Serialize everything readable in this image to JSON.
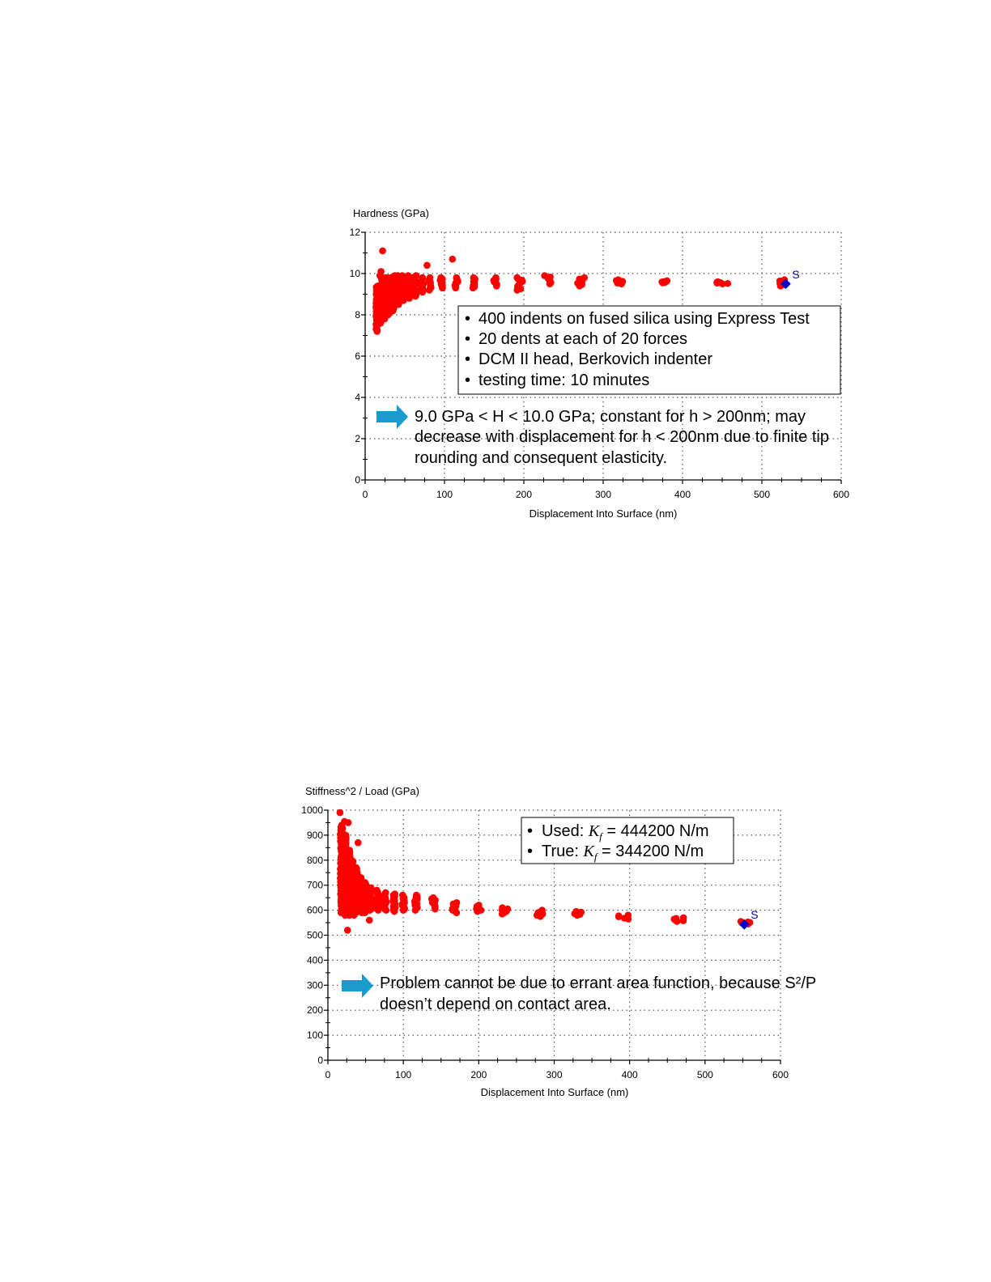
{
  "chart_data": [
    {
      "type": "scatter",
      "ylabel": "Hardness (GPa)",
      "xlabel": "Displacement Into Surface (nm)",
      "xlim": [
        0,
        600
      ],
      "ylim": [
        0,
        12
      ],
      "xticks": [
        0,
        100,
        200,
        300,
        400,
        500,
        600
      ],
      "yticks": [
        0,
        2,
        4,
        6,
        8,
        10,
        12
      ],
      "grid": true,
      "series": [
        {
          "color": "#ff0000",
          "clusters": [
            {
              "x": 15,
              "y_min": 7.2,
              "y_max": 9.4
            },
            {
              "x": 20,
              "y_min": 7.6,
              "y_max": 9.9
            },
            {
              "x": 25,
              "y_min": 7.8,
              "y_max": 9.8
            },
            {
              "x": 30,
              "y_min": 8.0,
              "y_max": 9.8
            },
            {
              "x": 36,
              "y_min": 8.2,
              "y_max": 9.9
            },
            {
              "x": 42,
              "y_min": 8.5,
              "y_max": 9.9
            },
            {
              "x": 48,
              "y_min": 8.7,
              "y_max": 9.9
            },
            {
              "x": 55,
              "y_min": 8.8,
              "y_max": 9.9
            },
            {
              "x": 63,
              "y_min": 8.9,
              "y_max": 9.9
            },
            {
              "x": 72,
              "y_min": 9.1,
              "y_max": 9.8
            },
            {
              "x": 82,
              "y_min": 9.2,
              "y_max": 9.8
            },
            {
              "x": 96,
              "y_min": 9.3,
              "y_max": 9.8
            },
            {
              "x": 115,
              "y_min": 9.3,
              "y_max": 9.8
            },
            {
              "x": 138,
              "y_min": 9.3,
              "y_max": 9.8
            },
            {
              "x": 165,
              "y_min": 9.4,
              "y_max": 9.8
            },
            {
              "x": 195,
              "y_min": 9.2,
              "y_max": 9.8
            },
            {
              "x": 230,
              "y_min": 9.5,
              "y_max": 9.9
            },
            {
              "x": 272,
              "y_min": 9.4,
              "y_max": 9.8
            },
            {
              "x": 322,
              "y_min": 9.5,
              "y_max": 9.7
            },
            {
              "x": 380,
              "y_min": 9.55,
              "y_max": 9.65
            },
            {
              "x": 450,
              "y_min": 9.5,
              "y_max": 9.6
            },
            {
              "x": 530,
              "y_min": 9.4,
              "y_max": 9.7
            }
          ],
          "outliers": [
            [
              22,
              11.1
            ],
            [
              20,
              10.1
            ],
            [
              78,
              10.4
            ],
            [
              110,
              10.7
            ]
          ]
        },
        {
          "color": "#0000cc",
          "points": [
            [
              530,
              9.5
            ]
          ],
          "label": "S"
        }
      ],
      "callout": {
        "bullets": [
          "400 indents on fused silica using Express Test",
          "20 dents at each of 20 forces",
          "DCM II head, Berkovich indenter",
          "testing time: 10 minutes"
        ]
      },
      "note": {
        "lines": [
          "9.0 GPa < H < 10.0 GPa; constant for h > 200nm; may",
          "decrease with displacement for h < 200nm due to finite tip",
          "rounding and consequent elasticity."
        ]
      }
    },
    {
      "type": "scatter",
      "ylabel": "Stiffness^2 / Load (GPa)",
      "xlabel": "Displacement Into Surface (nm)",
      "xlim": [
        0,
        600
      ],
      "ylim": [
        0,
        1000
      ],
      "xticks": [
        0,
        100,
        200,
        300,
        400,
        500,
        600
      ],
      "yticks": [
        0,
        100,
        200,
        300,
        400,
        500,
        600,
        700,
        800,
        900,
        1000
      ],
      "grid": true,
      "series": [
        {
          "color": "#ff0000",
          "clusters": [
            {
              "x": 18,
              "y_min": 590,
              "y_max": 940
            },
            {
              "x": 23,
              "y_min": 580,
              "y_max": 900
            },
            {
              "x": 28,
              "y_min": 580,
              "y_max": 840
            },
            {
              "x": 33,
              "y_min": 580,
              "y_max": 800
            },
            {
              "x": 38,
              "y_min": 590,
              "y_max": 770
            },
            {
              "x": 44,
              "y_min": 590,
              "y_max": 730
            },
            {
              "x": 50,
              "y_min": 590,
              "y_max": 710
            },
            {
              "x": 57,
              "y_min": 600,
              "y_max": 690
            },
            {
              "x": 66,
              "y_min": 600,
              "y_max": 680
            },
            {
              "x": 76,
              "y_min": 600,
              "y_max": 670
            },
            {
              "x": 88,
              "y_min": 595,
              "y_max": 665
            },
            {
              "x": 100,
              "y_min": 600,
              "y_max": 660
            },
            {
              "x": 117,
              "y_min": 600,
              "y_max": 660
            },
            {
              "x": 140,
              "y_min": 605,
              "y_max": 650
            },
            {
              "x": 168,
              "y_min": 590,
              "y_max": 630
            },
            {
              "x": 200,
              "y_min": 595,
              "y_max": 620
            },
            {
              "x": 235,
              "y_min": 585,
              "y_max": 610
            },
            {
              "x": 280,
              "y_min": 575,
              "y_max": 600
            },
            {
              "x": 330,
              "y_min": 580,
              "y_max": 595
            },
            {
              "x": 392,
              "y_min": 565,
              "y_max": 580
            },
            {
              "x": 467,
              "y_min": 555,
              "y_max": 570
            },
            {
              "x": 552,
              "y_min": 545,
              "y_max": 555
            }
          ],
          "outliers": [
            [
              16,
              990
            ],
            [
              22,
              955
            ],
            [
              27,
              950
            ],
            [
              40,
              870
            ],
            [
              26,
              520
            ],
            [
              55,
              560
            ]
          ]
        },
        {
          "color": "#0000cc",
          "points": [
            [
              552,
              543
            ]
          ],
          "label": "S"
        }
      ],
      "callout": {
        "lines": [
          {
            "prefix": "Used: ",
            "symbol": "K",
            "sub": "f",
            "value": " = 444200 N/m"
          },
          {
            "prefix": "True:  ",
            "symbol": "K",
            "sub": "f",
            "value": " = 344200 N/m"
          }
        ]
      },
      "note": {
        "line1": "Problem cannot be due to errant area function, because S²/P",
        "line2": "doesn’t depend on contact area."
      }
    }
  ]
}
